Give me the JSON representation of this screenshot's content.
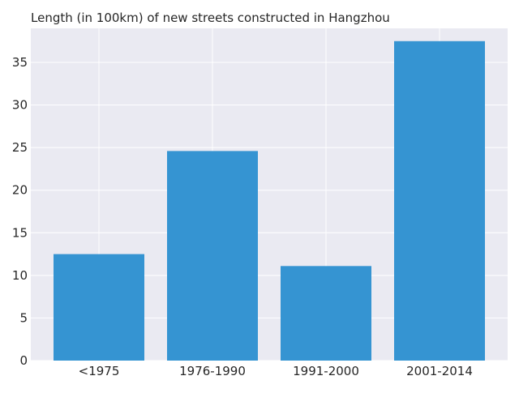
{
  "chart_data": {
    "type": "bar",
    "title": "Length (in 100km) of new streets constructed in Hangzhou",
    "xlabel": "",
    "ylabel": "",
    "categories": [
      "<1975",
      "1976-1990",
      "1991-2000",
      "2001-2014"
    ],
    "values": [
      12.5,
      24.6,
      11.1,
      37.5
    ],
    "ylim": [
      0,
      39
    ],
    "yticks": [
      0,
      5,
      10,
      15,
      20,
      25,
      30,
      35
    ],
    "grid": true,
    "legend": "none",
    "colors": {
      "bar": "#3594d2",
      "plot_background": "#eaeaf2",
      "grid": "#ffffff"
    }
  }
}
